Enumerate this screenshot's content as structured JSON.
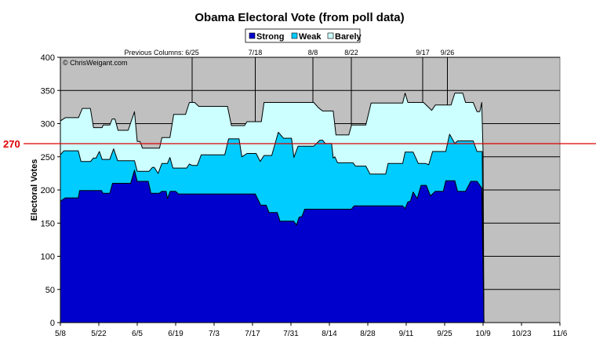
{
  "chart_data": {
    "type": "area",
    "stacked": true,
    "title": "Obama Electoral Vote (from poll data)",
    "xlabel": "",
    "ylabel": "Electoral Votes",
    "x_unit": "days since 5/8",
    "xlim": [
      0,
      182
    ],
    "ylim": [
      0,
      400
    ],
    "yticks": [
      0,
      50,
      100,
      150,
      200,
      250,
      300,
      350,
      400
    ],
    "xtick_labels": [
      "5/8",
      "5/22",
      "6/5",
      "6/19",
      "7/3",
      "7/17",
      "7/31",
      "8/14",
      "8/28",
      "9/11",
      "9/25",
      "10/9",
      "10/23",
      "11/6"
    ],
    "xtick_step_days": 14,
    "grid": true,
    "legend": {
      "placement": "top-center",
      "entries": [
        "Strong",
        "Weak",
        "Barely"
      ]
    },
    "watermark": "© ChrisWeigant.com",
    "threshold": {
      "value": 270,
      "label": "270",
      "color": "#dd0000"
    },
    "markers_prefix": "Previous Columns:",
    "markers": [
      {
        "label": "6/25",
        "day": 48
      },
      {
        "label": "7/18",
        "day": 71
      },
      {
        "label": "8/8",
        "day": 92
      },
      {
        "label": "8/22",
        "day": 106
      },
      {
        "label": "9/17",
        "day": 132
      },
      {
        "label": "9/26",
        "day": 141
      }
    ],
    "colors": {
      "Strong": "#0000cc",
      "Weak": "#00ccff",
      "Barely": "#ccffff",
      "background": "#c0c0c0"
    },
    "series": [
      {
        "name": "Barely",
        "note": "stacked top (Strong+Weak+Barely)",
        "points": [
          [
            0,
            304
          ],
          [
            1.8,
            309
          ],
          [
            6.6,
            309
          ],
          [
            8,
            323
          ],
          [
            10.9,
            323
          ],
          [
            12.1,
            294
          ],
          [
            15.2,
            294
          ],
          [
            15.6,
            298
          ],
          [
            18,
            298
          ],
          [
            18.9,
            307
          ],
          [
            19.9,
            307
          ],
          [
            21,
            290
          ],
          [
            24.7,
            290
          ],
          [
            27,
            318
          ],
          [
            28,
            273
          ],
          [
            29,
            273
          ],
          [
            29.9,
            263
          ],
          [
            36.1,
            263
          ],
          [
            37,
            279
          ],
          [
            39.9,
            279
          ],
          [
            41.3,
            314
          ],
          [
            45.6,
            314
          ],
          [
            47,
            332
          ],
          [
            48.9,
            332
          ],
          [
            50.4,
            326
          ],
          [
            60.9,
            326
          ],
          [
            62.3,
            297
          ],
          [
            67.1,
            297
          ],
          [
            68,
            303
          ],
          [
            73.2,
            303
          ],
          [
            74.2,
            332
          ],
          [
            92.3,
            332
          ],
          [
            94,
            324
          ],
          [
            95.5,
            319
          ],
          [
            99.4,
            319
          ],
          [
            100.4,
            283
          ],
          [
            105.1,
            283
          ],
          [
            106.1,
            298
          ],
          [
            111.3,
            298
          ],
          [
            113.2,
            331
          ],
          [
            124.7,
            331
          ],
          [
            125.6,
            346
          ],
          [
            126.6,
            332
          ],
          [
            132.3,
            332
          ],
          [
            135.3,
            320
          ],
          [
            136.6,
            328
          ],
          [
            142.3,
            328
          ],
          [
            143.7,
            346
          ],
          [
            146.6,
            346
          ],
          [
            147.6,
            332
          ],
          [
            150.4,
            332
          ],
          [
            151.8,
            318
          ],
          [
            152.8,
            318
          ],
          [
            153.5,
            332
          ],
          [
            154,
            258
          ],
          [
            154.3,
            0
          ]
        ]
      },
      {
        "name": "Weak",
        "note": "stacked top (Strong+Weak)",
        "points": [
          [
            0,
            253
          ],
          [
            1.3,
            259
          ],
          [
            6.5,
            259
          ],
          [
            7.5,
            243
          ],
          [
            11,
            243
          ],
          [
            12,
            248
          ],
          [
            13,
            248
          ],
          [
            14.2,
            258
          ],
          [
            15.2,
            246
          ],
          [
            18,
            246
          ],
          [
            19.4,
            262
          ],
          [
            20.9,
            244
          ],
          [
            27,
            244
          ],
          [
            28,
            228
          ],
          [
            32.3,
            228
          ],
          [
            33.5,
            234
          ],
          [
            34.2,
            234
          ],
          [
            35.6,
            225
          ],
          [
            37,
            240
          ],
          [
            39,
            240
          ],
          [
            39.9,
            249
          ],
          [
            41,
            233
          ],
          [
            46,
            233
          ],
          [
            47,
            239
          ],
          [
            48,
            237
          ],
          [
            49.9,
            237
          ],
          [
            51.3,
            253
          ],
          [
            59.9,
            253
          ],
          [
            61.3,
            277
          ],
          [
            65.1,
            277
          ],
          [
            66.1,
            250
          ],
          [
            68,
            255
          ],
          [
            71.3,
            255
          ],
          [
            72.8,
            243
          ],
          [
            74.2,
            252
          ],
          [
            77,
            252
          ],
          [
            79.4,
            287
          ],
          [
            81.3,
            278
          ],
          [
            84.2,
            278
          ],
          [
            85.1,
            249
          ],
          [
            86.6,
            266
          ],
          [
            92.3,
            266
          ],
          [
            94.5,
            275
          ],
          [
            95.5,
            275
          ],
          [
            96.5,
            270
          ],
          [
            98.8,
            270
          ],
          [
            99.4,
            248
          ],
          [
            100,
            250
          ],
          [
            101,
            241
          ],
          [
            106.6,
            241
          ],
          [
            107.5,
            236
          ],
          [
            111.3,
            236
          ],
          [
            112.8,
            224
          ],
          [
            118.5,
            224
          ],
          [
            119.4,
            240
          ],
          [
            124.7,
            240
          ],
          [
            125.6,
            257
          ],
          [
            128.5,
            257
          ],
          [
            130.4,
            240
          ],
          [
            133,
            240
          ],
          [
            134.2,
            238
          ],
          [
            135.6,
            258
          ],
          [
            140.4,
            258
          ],
          [
            141.8,
            284
          ],
          [
            143.7,
            270
          ],
          [
            144.7,
            274
          ],
          [
            150.4,
            274
          ],
          [
            151.8,
            258
          ],
          [
            153.7,
            258
          ],
          [
            154.3,
            0
          ]
        ]
      },
      {
        "name": "Strong",
        "note": "stacked top (Strong)",
        "points": [
          [
            0,
            183
          ],
          [
            1.8,
            188
          ],
          [
            6.5,
            188
          ],
          [
            7,
            199
          ],
          [
            15,
            199
          ],
          [
            15.5,
            195
          ],
          [
            18,
            195
          ],
          [
            19,
            210
          ],
          [
            25.6,
            210
          ],
          [
            27,
            230
          ],
          [
            28,
            213
          ],
          [
            32,
            213
          ],
          [
            33,
            195
          ],
          [
            36,
            195
          ],
          [
            37,
            198
          ],
          [
            38.5,
            198
          ],
          [
            39,
            187
          ],
          [
            40,
            198
          ],
          [
            42,
            198
          ],
          [
            43,
            194
          ],
          [
            71,
            194
          ],
          [
            73,
            177
          ],
          [
            75,
            177
          ],
          [
            76,
            166
          ],
          [
            79,
            166
          ],
          [
            80,
            153
          ],
          [
            85,
            153
          ],
          [
            86,
            147
          ],
          [
            87,
            159
          ],
          [
            88,
            160
          ],
          [
            89,
            171
          ],
          [
            106,
            171
          ],
          [
            107,
            176
          ],
          [
            124.7,
            176
          ],
          [
            125.6,
            172
          ],
          [
            126.6,
            182
          ],
          [
            127.5,
            183
          ],
          [
            128.5,
            197
          ],
          [
            130,
            187
          ],
          [
            131.4,
            207
          ],
          [
            133.3,
            207
          ],
          [
            134.8,
            191
          ],
          [
            136.6,
            198
          ],
          [
            139.5,
            198
          ],
          [
            140.4,
            214
          ],
          [
            143.7,
            214
          ],
          [
            144.7,
            198
          ],
          [
            147.6,
            198
          ],
          [
            149.5,
            213
          ],
          [
            151.8,
            213
          ],
          [
            153.5,
            203
          ],
          [
            154.3,
            0
          ]
        ]
      }
    ]
  }
}
